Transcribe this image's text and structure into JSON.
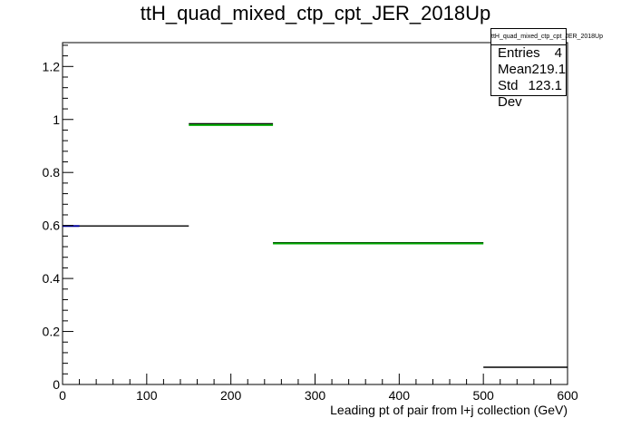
{
  "chart_data": {
    "type": "histogram",
    "title": "ttH_quad_mixed_ctp_cpt_JER_2018Up",
    "xlabel": "Leading pt of pair from l+j collection (GeV)",
    "ylabel": "",
    "xlim": [
      0,
      600
    ],
    "ylim": [
      0,
      1.29
    ],
    "x_ticks": [
      "0",
      "100",
      "200",
      "300",
      "400",
      "500",
      "600"
    ],
    "y_ticks": [
      "0",
      "0.2",
      "0.4",
      "0.6",
      "0.8",
      "1",
      "1.2"
    ],
    "bins": [
      {
        "low": 0,
        "high": 150,
        "value": 0.598
      },
      {
        "low": 150,
        "high": 250,
        "value": 0.984
      },
      {
        "low": 250,
        "high": 500,
        "value": 0.535
      },
      {
        "low": 500,
        "high": 600,
        "value": 0.065
      }
    ],
    "overlay_bins": [
      {
        "low": 0,
        "high": 20,
        "value": 0.598,
        "color": "#000099"
      },
      {
        "low": 150,
        "high": 250,
        "value": 0.979,
        "color": "#00aa00"
      },
      {
        "low": 250,
        "high": 500,
        "value": 0.532,
        "color": "#00aa00"
      }
    ],
    "colors": {
      "line": "#000000",
      "accent_blue": "#0000cc",
      "accent_green": "#00bb00"
    },
    "stats": {
      "title": "ttH_quad_mixed_ctp_cpt_JER_2018Up",
      "rows": [
        {
          "label": "Entries",
          "value": "4"
        },
        {
          "label": "Mean",
          "value": "219.1"
        },
        {
          "label": "Std Dev",
          "value": "123.1"
        }
      ]
    }
  }
}
